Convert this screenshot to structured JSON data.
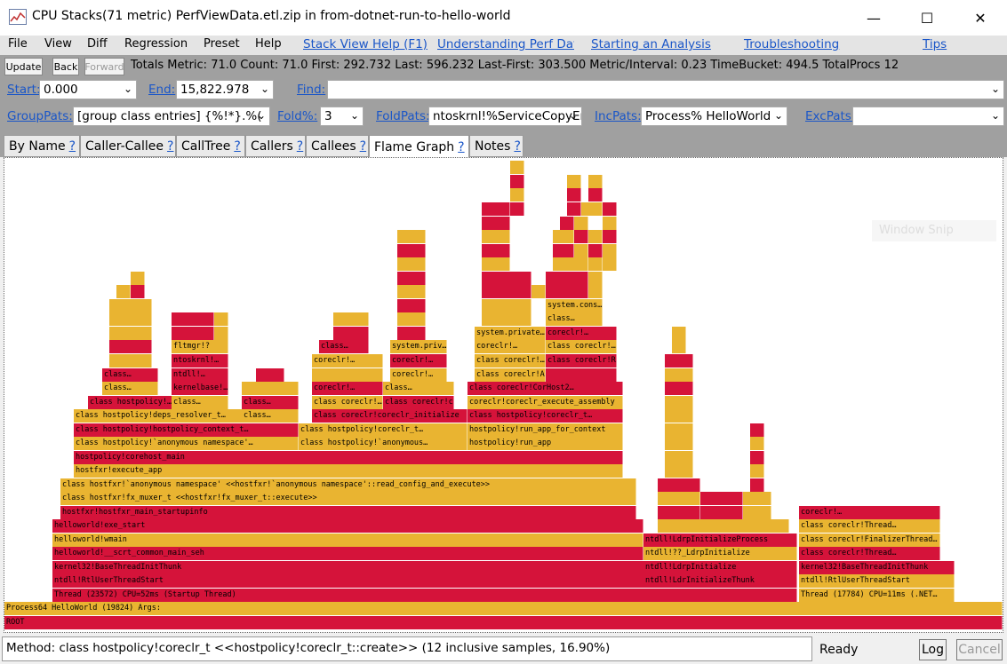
{
  "window": {
    "title": "CPU Stacks(71 metric) PerfViewData.etl.zip in from-dotnet-run-to-hello-world",
    "controls": [
      "—",
      "☐",
      "✕"
    ]
  },
  "menu": [
    "File",
    "View",
    "Diff",
    "Regression",
    "Preset",
    "Help"
  ],
  "help_links": [
    "Stack View Help (F1)",
    "Understanding Perf Data",
    "Starting an Analysis",
    "Troubleshooting",
    "Tips"
  ],
  "toolbar": {
    "update": "Update",
    "back": "Back",
    "forward": "Forward",
    "totals": "Totals Metric: 71.0  Count: 71.0  First: 292.732  Last: 596.232  Last-First: 303.500  Metric/Interval: 0.23  TimeBucket: 494.5  TotalProcs 12"
  },
  "filters": {
    "start_label": "Start:",
    "start_value": "0.000",
    "end_label": "End:",
    "end_value": "15,822.978",
    "find_label": "Find:",
    "find_value": "",
    "grouppats_label": "GroupPats:",
    "grouppats_value": "[group class entries]      {%!*}.%(",
    "fold_label": "Fold%:",
    "fold_value": "3",
    "foldpats_label": "FoldPats:",
    "foldpats_value": "ntoskrnl!%ServiceCopyEnd",
    "incpats_label": "IncPats:",
    "incpats_value": "Process% HelloWorld",
    "excpats_label": "ExcPats:",
    "excpats_value": ""
  },
  "tabs": [
    {
      "label": "By Name",
      "q": "?"
    },
    {
      "label": "Caller-Callee",
      "q": "?"
    },
    {
      "label": "CallTree",
      "q": "?"
    },
    {
      "label": "Callers",
      "q": "?"
    },
    {
      "label": "Callees",
      "q": "?"
    },
    {
      "label": "Flame Graph",
      "q": "?"
    },
    {
      "label": "Notes",
      "q": "?"
    }
  ],
  "colors": {
    "red": "#d5133a",
    "yellow": "#e9b431"
  },
  "flame_labels": {
    "root": "ROOT",
    "process": "Process64 HelloWorld (19824) Args:",
    "thread_main": "Thread (23572) CPU=52ms (Startup Thread)",
    "rtl_main": "ntdll!RtlUserThreadStart",
    "base_main": "kernel32!BaseThreadInitThunk",
    "scrt": "helloworld!__scrt_common_main_seh",
    "wmain": "helloworld!wmain",
    "exe_start": "helloworld!exe_start",
    "hostfxr_main": "hostfxr!hostfxr_main_startupinfo",
    "fx_muxer": "class hostfxr!fx_muxer_t <<hostfxr!fx_muxer_t::execute>>",
    "anon_ns": "class hostfxr!`anonymous namespace' <<hostfxr!`anonymous namespace'::read_config_and_execute>>",
    "execute_app": "hostfxr!execute_app",
    "corehost_main": "hostpolicy!corehost_main",
    "anon_ns_hp": "class hostpolicy!`anonymous namespace'…",
    "hp_context": "class hostpolicy!hostpolicy_context_t…",
    "deps_resolver": "class hostpolicy!deps_resolver_t…",
    "hp_class": "class hostpolicy!…",
    "class_a": "class…",
    "class_b": "class…",
    "kernelbase": "kernelbase!…",
    "ntdll_a": "ntdll!…",
    "ntoskrnl": "ntoskrnl!…",
    "fltmgr": "fltmgr!?",
    "class_c": "class…",
    "class_d": "class…",
    "class_e": "class…",
    "hp_coreclr_t": "class hostpolicy!coreclr_t…",
    "coreclr_init": "class coreclr!coreclr_initialize",
    "class_coreclr": "class coreclr!…",
    "coreclr_a": "coreclr!…",
    "coreclr_b": "coreclr!…",
    "class_f": "class…",
    "anon_ns_hp2": "class hostpolicy!`anonymous…",
    "coreclr_c": "coreclr!…",
    "class_coreclr_t": "class coreclr!coreclr_t…",
    "class_g": "class…",
    "coreclr_d": "coreclr!…",
    "system_priv": "system.priv…",
    "run_app": "hostpolicy!run_app",
    "run_app_ctx": "hostpolicy!run_app_for_context",
    "hp_coreclr_t2": "class hostpolicy!coreclr_t…",
    "execute_assembly": "coreclr!coreclr_execute_assembly",
    "corhost2": "class coreclr!CorHost2…",
    "assembly": "class coreclr!Assembly…",
    "class_coreclr2": "class coreclr!…",
    "coreclr_e": "coreclr!…",
    "system_private": "system.private…",
    "runmain": "class coreclr!RunMain",
    "class_coreclr3": "class coreclr!…",
    "coreclr_f": "coreclr!…",
    "class_h": "class…",
    "system_cons": "system.cons…",
    "ldr_thunk": "ntdll!LdrInitializeThunk",
    "ldrp_init": "ntdll!LdrpInitialize",
    "ldrp_init2": "ntdll!??_LdrpInitialize",
    "ldrp_process": "ntdll!LdrpInitializeProcess",
    "thread_2": "Thread (17784) CPU=11ms (.NET…",
    "rtl_2": "ntdll!RtlUserThreadStart",
    "base_2": "kernel32!BaseThreadInitThunk",
    "class_coreclr_thread": "class coreclr!Thread…",
    "finalizer": "class coreclr!FinalizerThread…",
    "class_coreclr_thread2": "class coreclr!Thread…",
    "coreclr_g": "coreclr!…"
  },
  "watermark": "Window Snip",
  "status": {
    "method": "Method: class hostpolicy!coreclr_t <<hostpolicy!coreclr_t::create>> (12 inclusive samples, 16.90%)",
    "ready": "Ready",
    "log": "Log",
    "cancel": "Cancel"
  }
}
